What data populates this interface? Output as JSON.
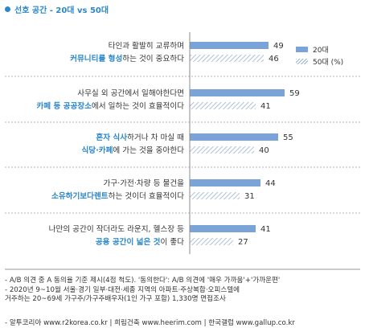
{
  "title": "선호 공간 - 20대 vs 50대",
  "colors": {
    "accent": "#2b87c9",
    "bar20": "#7aa3d8",
    "hatch50": "#9ab2cf",
    "highlight": "#2b87c9"
  },
  "chart_data": {
    "type": "bar",
    "orientation": "horizontal",
    "title": "선호 공간 - 20대 vs 50대",
    "legend": [
      "20대",
      "50대 (%)"
    ],
    "legend_position": "top-right",
    "series": [
      {
        "name": "20대",
        "values": [
          49,
          59,
          55,
          44,
          41
        ]
      },
      {
        "name": "50대 (%)",
        "values": [
          46,
          41,
          40,
          31,
          27
        ]
      }
    ],
    "categories": [
      {
        "line1": [
          {
            "t": "타인과 활발히 교류하며",
            "h": false
          }
        ],
        "line2": [
          {
            "t": "커뮤니티를 형성",
            "h": true
          },
          {
            "t": "하는 것이 중요하다",
            "h": false
          }
        ]
      },
      {
        "line1": [
          {
            "t": "사무실 외 공간에서 일해야한다면",
            "h": false
          }
        ],
        "line2": [
          {
            "t": "카페 등 공공장소",
            "h": true
          },
          {
            "t": "에서 일하는 것이 효율적이다",
            "h": false
          }
        ]
      },
      {
        "line1": [
          {
            "t": "혼자 식사",
            "h": true
          },
          {
            "t": "하거나 차 마실 때",
            "h": false
          }
        ],
        "line2": [
          {
            "t": "식당·카페",
            "h": true
          },
          {
            "t": "에 가는 것을 중아한다",
            "h": false
          }
        ]
      },
      {
        "line1": [
          {
            "t": "가구·가전·차량 등 물건을",
            "h": false
          }
        ],
        "line2": [
          {
            "t": "소유하기보다렌트",
            "h": true
          },
          {
            "t": "하는 것이더 효율적이다",
            "h": false
          }
        ]
      },
      {
        "line1": [
          {
            "t": "나만의 공간이 작더라도 라운지, 헬스장 등",
            "h": false
          }
        ],
        "line2": [
          {
            "t": "공용 공간이 넓은 것",
            "h": true
          },
          {
            "t": "이 좋다",
            "h": false
          }
        ]
      }
    ]
  },
  "notes": [
    "- A/B 의견 중 A 동의율 기준 제시(4점 척도). '동의한다': A/B 의견에 '매우 가까움'+'가까운편'",
    "- 2020년 9~10월 서울·경기 일부·대전·세종 지역의 아파트·주상복합·오피스텔에",
    "  거주하는 20~69세 가구주/가구주배우자(1인 가구 포함) 1,330명 면접조사"
  ],
  "source": "- 알투코리아 www.r2korea.co.kr | 희림건축 www.heerim.com | 한국갤럽 www.gallup.co.kr"
}
